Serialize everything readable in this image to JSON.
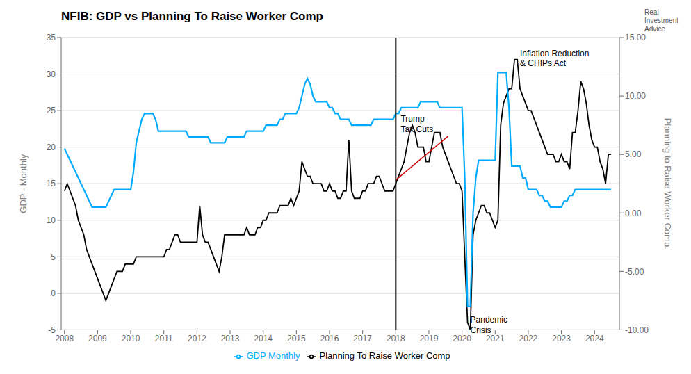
{
  "chart_data": {
    "type": "line",
    "title": "NFIB: GDP vs Planning To Raise Worker Comp",
    "ylabel": "GDP - Monthly",
    "y2label": "Planning to Raise Worker Comp.",
    "watermark": "Real\nInvestment\nAdvice",
    "xlim": [
      2007.9,
      2024.75
    ],
    "xticks": [
      2008,
      2009,
      2010,
      2011,
      2012,
      2013,
      2014,
      2015,
      2016,
      2017,
      2018,
      2019,
      2020,
      2021,
      2022,
      2023,
      2024
    ],
    "ylim": [
      -5,
      35
    ],
    "yticks": [
      -5,
      0,
      5,
      10,
      15,
      20,
      25,
      30,
      35
    ],
    "y2lim": [
      -10,
      15
    ],
    "y2ticks": [
      {
        "value": -10,
        "label": "-10.00"
      },
      {
        "value": -5,
        "label": "-5.00"
      },
      {
        "value": 0,
        "label": "0.00"
      },
      {
        "value": 5,
        "label": "5.00"
      },
      {
        "value": 10,
        "label": "10.00"
      },
      {
        "value": 15,
        "label": "15.00"
      }
    ],
    "grid": "y",
    "legend": "bottom",
    "vline": {
      "x": 2018.0,
      "color": "#000000"
    },
    "trend_line": {
      "x0": 2018.0,
      "y0": 15.5,
      "x1": 2019.58,
      "y1": 21.5,
      "color": "#cc0000"
    },
    "annotations": [
      {
        "text": "Trump\nTax Cuts",
        "x": 2018.15,
        "y": 24.5
      },
      {
        "text": "Pandemic\nCrisis",
        "x": 2020.25,
        "y": -3.0
      },
      {
        "text": "Inflation Reduction\n& CHIPs Act",
        "x": 2021.75,
        "y": 33.5
      }
    ],
    "x": [
      2008.0,
      2008.083,
      2008.167,
      2008.25,
      2008.333,
      2008.417,
      2008.5,
      2008.583,
      2008.667,
      2008.75,
      2008.833,
      2008.917,
      2009.0,
      2009.083,
      2009.167,
      2009.25,
      2009.333,
      2009.417,
      2009.5,
      2009.583,
      2009.667,
      2009.75,
      2009.833,
      2009.917,
      2010.0,
      2010.083,
      2010.167,
      2010.25,
      2010.333,
      2010.417,
      2010.5,
      2010.583,
      2010.667,
      2010.75,
      2010.833,
      2010.917,
      2011.0,
      2011.083,
      2011.167,
      2011.25,
      2011.333,
      2011.417,
      2011.5,
      2011.583,
      2011.667,
      2011.75,
      2011.833,
      2011.917,
      2012.0,
      2012.083,
      2012.167,
      2012.25,
      2012.333,
      2012.417,
      2012.5,
      2012.583,
      2012.667,
      2012.75,
      2012.833,
      2012.917,
      2013.0,
      2013.083,
      2013.167,
      2013.25,
      2013.333,
      2013.417,
      2013.5,
      2013.583,
      2013.667,
      2013.75,
      2013.833,
      2013.917,
      2014.0,
      2014.083,
      2014.167,
      2014.25,
      2014.333,
      2014.417,
      2014.5,
      2014.583,
      2014.667,
      2014.75,
      2014.833,
      2014.917,
      2015.0,
      2015.083,
      2015.167,
      2015.25,
      2015.333,
      2015.417,
      2015.5,
      2015.583,
      2015.667,
      2015.75,
      2015.833,
      2015.917,
      2016.0,
      2016.083,
      2016.167,
      2016.25,
      2016.333,
      2016.417,
      2016.5,
      2016.583,
      2016.667,
      2016.75,
      2016.833,
      2016.917,
      2017.0,
      2017.083,
      2017.167,
      2017.25,
      2017.333,
      2017.417,
      2017.5,
      2017.583,
      2017.667,
      2017.75,
      2017.833,
      2017.917,
      2018.0,
      2018.083,
      2018.167,
      2018.25,
      2018.333,
      2018.417,
      2018.5,
      2018.583,
      2018.667,
      2018.75,
      2018.833,
      2018.917,
      2019.0,
      2019.083,
      2019.167,
      2019.25,
      2019.333,
      2019.417,
      2019.5,
      2019.583,
      2019.667,
      2019.75,
      2019.833,
      2019.917,
      2020.0,
      2020.083,
      2020.167,
      2020.25,
      2020.333,
      2020.417,
      2020.5,
      2020.583,
      2020.667,
      2020.75,
      2020.833,
      2020.917,
      2021.0,
      2021.083,
      2021.167,
      2021.25,
      2021.333,
      2021.417,
      2021.5,
      2021.583,
      2021.667,
      2021.75,
      2021.833,
      2021.917,
      2022.0,
      2022.083,
      2022.167,
      2022.25,
      2022.333,
      2022.417,
      2022.5,
      2022.583,
      2022.667,
      2022.75,
      2022.833,
      2022.917,
      2023.0,
      2023.083,
      2023.167,
      2023.25,
      2023.333,
      2023.417,
      2023.5,
      2023.583,
      2023.667,
      2023.75,
      2023.833,
      2023.917,
      2024.0,
      2024.083,
      2024.167,
      2024.25,
      2024.333,
      2024.417,
      2024.5
    ],
    "series": [
      {
        "name": "Planning To Raise Worker Comp",
        "color": "#000000",
        "values": [
          14,
          15,
          14,
          13,
          12,
          10,
          9,
          8,
          6,
          5,
          4,
          3,
          2,
          1,
          0,
          -1,
          0,
          1,
          2,
          3,
          3,
          3,
          4,
          4,
          4,
          4,
          5,
          5,
          5,
          5,
          5,
          5,
          5,
          5,
          5,
          5,
          5,
          6,
          6,
          7,
          8,
          8,
          7,
          7,
          7,
          7,
          7,
          7,
          7,
          12,
          8,
          7,
          7,
          6,
          5,
          4,
          3,
          5,
          8,
          8,
          8,
          8,
          8,
          8,
          8,
          8,
          9,
          8,
          8,
          8,
          9,
          9,
          10,
          10,
          11,
          11,
          11,
          11,
          12,
          12,
          12,
          12,
          13,
          12,
          13,
          14,
          18,
          17,
          16,
          16,
          15,
          15,
          15,
          15,
          14,
          14,
          15,
          14,
          14,
          13,
          13,
          14,
          14,
          21,
          14,
          13,
          13,
          13,
          14,
          14,
          15,
          15,
          15,
          16,
          16,
          15,
          14,
          14,
          14,
          14,
          15,
          16,
          17,
          18,
          20,
          22,
          23,
          22,
          20,
          20,
          20,
          18,
          18,
          20,
          22,
          22,
          22,
          20,
          19,
          18,
          17,
          16,
          15,
          15,
          14,
          5,
          -4,
          -5,
          8,
          10,
          11,
          12,
          12,
          11,
          11,
          10,
          9,
          10,
          23,
          26,
          27,
          28,
          28,
          32,
          32,
          28,
          27,
          26,
          25,
          25,
          24,
          23,
          22,
          21,
          20,
          19,
          19,
          19,
          18,
          18,
          19,
          18,
          18,
          17,
          22,
          22,
          25,
          29,
          28,
          26,
          23,
          21,
          20,
          20,
          18,
          17,
          15,
          19,
          19
        ]
      },
      {
        "name": "GDP Monthly",
        "color": "#00aaff",
        "axis": "y2",
        "values": [
          5.5,
          5.0,
          4.5,
          4.0,
          3.5,
          3.0,
          2.5,
          2.0,
          1.5,
          1.0,
          0.5,
          0.5,
          0.5,
          0.5,
          0.5,
          0.5,
          1.0,
          1.5,
          2.0,
          2.0,
          2.0,
          2.0,
          2.0,
          2.0,
          2.0,
          3.5,
          6.0,
          7.0,
          8.0,
          8.5,
          8.5,
          8.5,
          8.5,
          8.0,
          7.0,
          7.0,
          7.0,
          7.0,
          7.0,
          7.0,
          7.0,
          7.0,
          7.0,
          7.0,
          7.0,
          6.5,
          6.5,
          6.5,
          6.5,
          6.5,
          6.5,
          6.5,
          6.5,
          6.0,
          6.0,
          6.0,
          6.0,
          6.0,
          6.0,
          6.5,
          6.5,
          6.5,
          6.5,
          6.5,
          6.5,
          6.5,
          7.0,
          7.0,
          7.0,
          7.0,
          7.0,
          7.0,
          7.0,
          7.5,
          7.5,
          7.5,
          7.5,
          7.5,
          8.0,
          8.0,
          8.5,
          8.5,
          8.5,
          8.5,
          8.5,
          9.0,
          10.0,
          11.0,
          11.5,
          11.0,
          10.0,
          9.5,
          9.5,
          9.5,
          9.5,
          9.5,
          9.0,
          9.0,
          8.5,
          8.5,
          8.0,
          8.0,
          8.0,
          8.0,
          7.5,
          7.5,
          7.5,
          7.5,
          7.5,
          7.5,
          7.5,
          7.5,
          8.0,
          8.0,
          8.0,
          8.0,
          8.0,
          8.0,
          8.0,
          8.0,
          8.5,
          8.5,
          9.0,
          9.0,
          9.0,
          9.0,
          9.0,
          9.0,
          9.0,
          9.5,
          9.5,
          9.5,
          9.5,
          9.5,
          9.5,
          9.5,
          9.0,
          9.0,
          9.0,
          9.0,
          9.0,
          9.0,
          9.0,
          9.0,
          9.0,
          3.0,
          -8.0,
          -8.0,
          0.0,
          3.0,
          4.5,
          4.5,
          4.5,
          4.5,
          4.5,
          4.5,
          4.5,
          12.0,
          12.0,
          12.0,
          12.0,
          9.0,
          4.0,
          4.0,
          4.0,
          4.0,
          3.0,
          3.0,
          2.0,
          2.0,
          2.0,
          2.0,
          1.5,
          1.5,
          1.0,
          1.0,
          0.5,
          0.5,
          0.5,
          0.5,
          0.5,
          1.0,
          1.0,
          1.5,
          1.5,
          2.0,
          2.0,
          2.0,
          2.0,
          2.0,
          2.0,
          2.0,
          2.0,
          2.0,
          2.0,
          2.0,
          2.0,
          2.0,
          2.0
        ]
      }
    ]
  }
}
